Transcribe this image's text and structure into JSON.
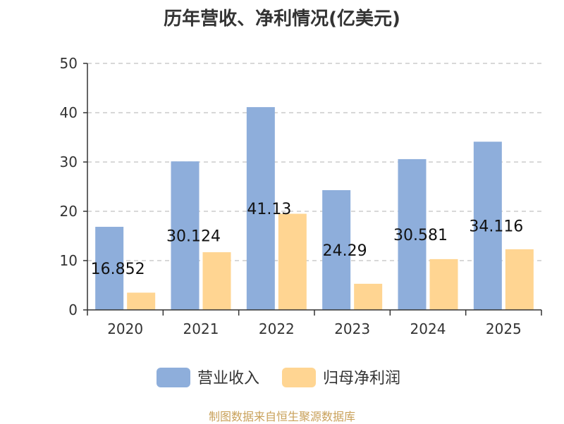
{
  "chart_data": {
    "type": "bar",
    "title": "历年营收、净利情况(亿美元)",
    "categories": [
      "2020",
      "2021",
      "2022",
      "2023",
      "2024",
      "2025"
    ],
    "series": [
      {
        "name": "营业收入",
        "values": [
          16.852,
          30.124,
          41.13,
          24.29,
          30.581,
          34.116
        ],
        "color": "#8eaedb",
        "labels": [
          "16.852",
          "30.124",
          "41.13",
          "24.29",
          "30.581",
          "34.116"
        ]
      },
      {
        "name": "归母净利润",
        "values": [
          3.5,
          11.7,
          19.5,
          5.3,
          10.3,
          12.3
        ],
        "color": "#ffd592"
      }
    ],
    "ylim": [
      0,
      50
    ],
    "yticks": [
      0,
      10,
      20,
      30,
      40,
      50
    ],
    "grid": true,
    "legend": "bottom"
  },
  "source": "制图数据来自恒生聚源数据库"
}
